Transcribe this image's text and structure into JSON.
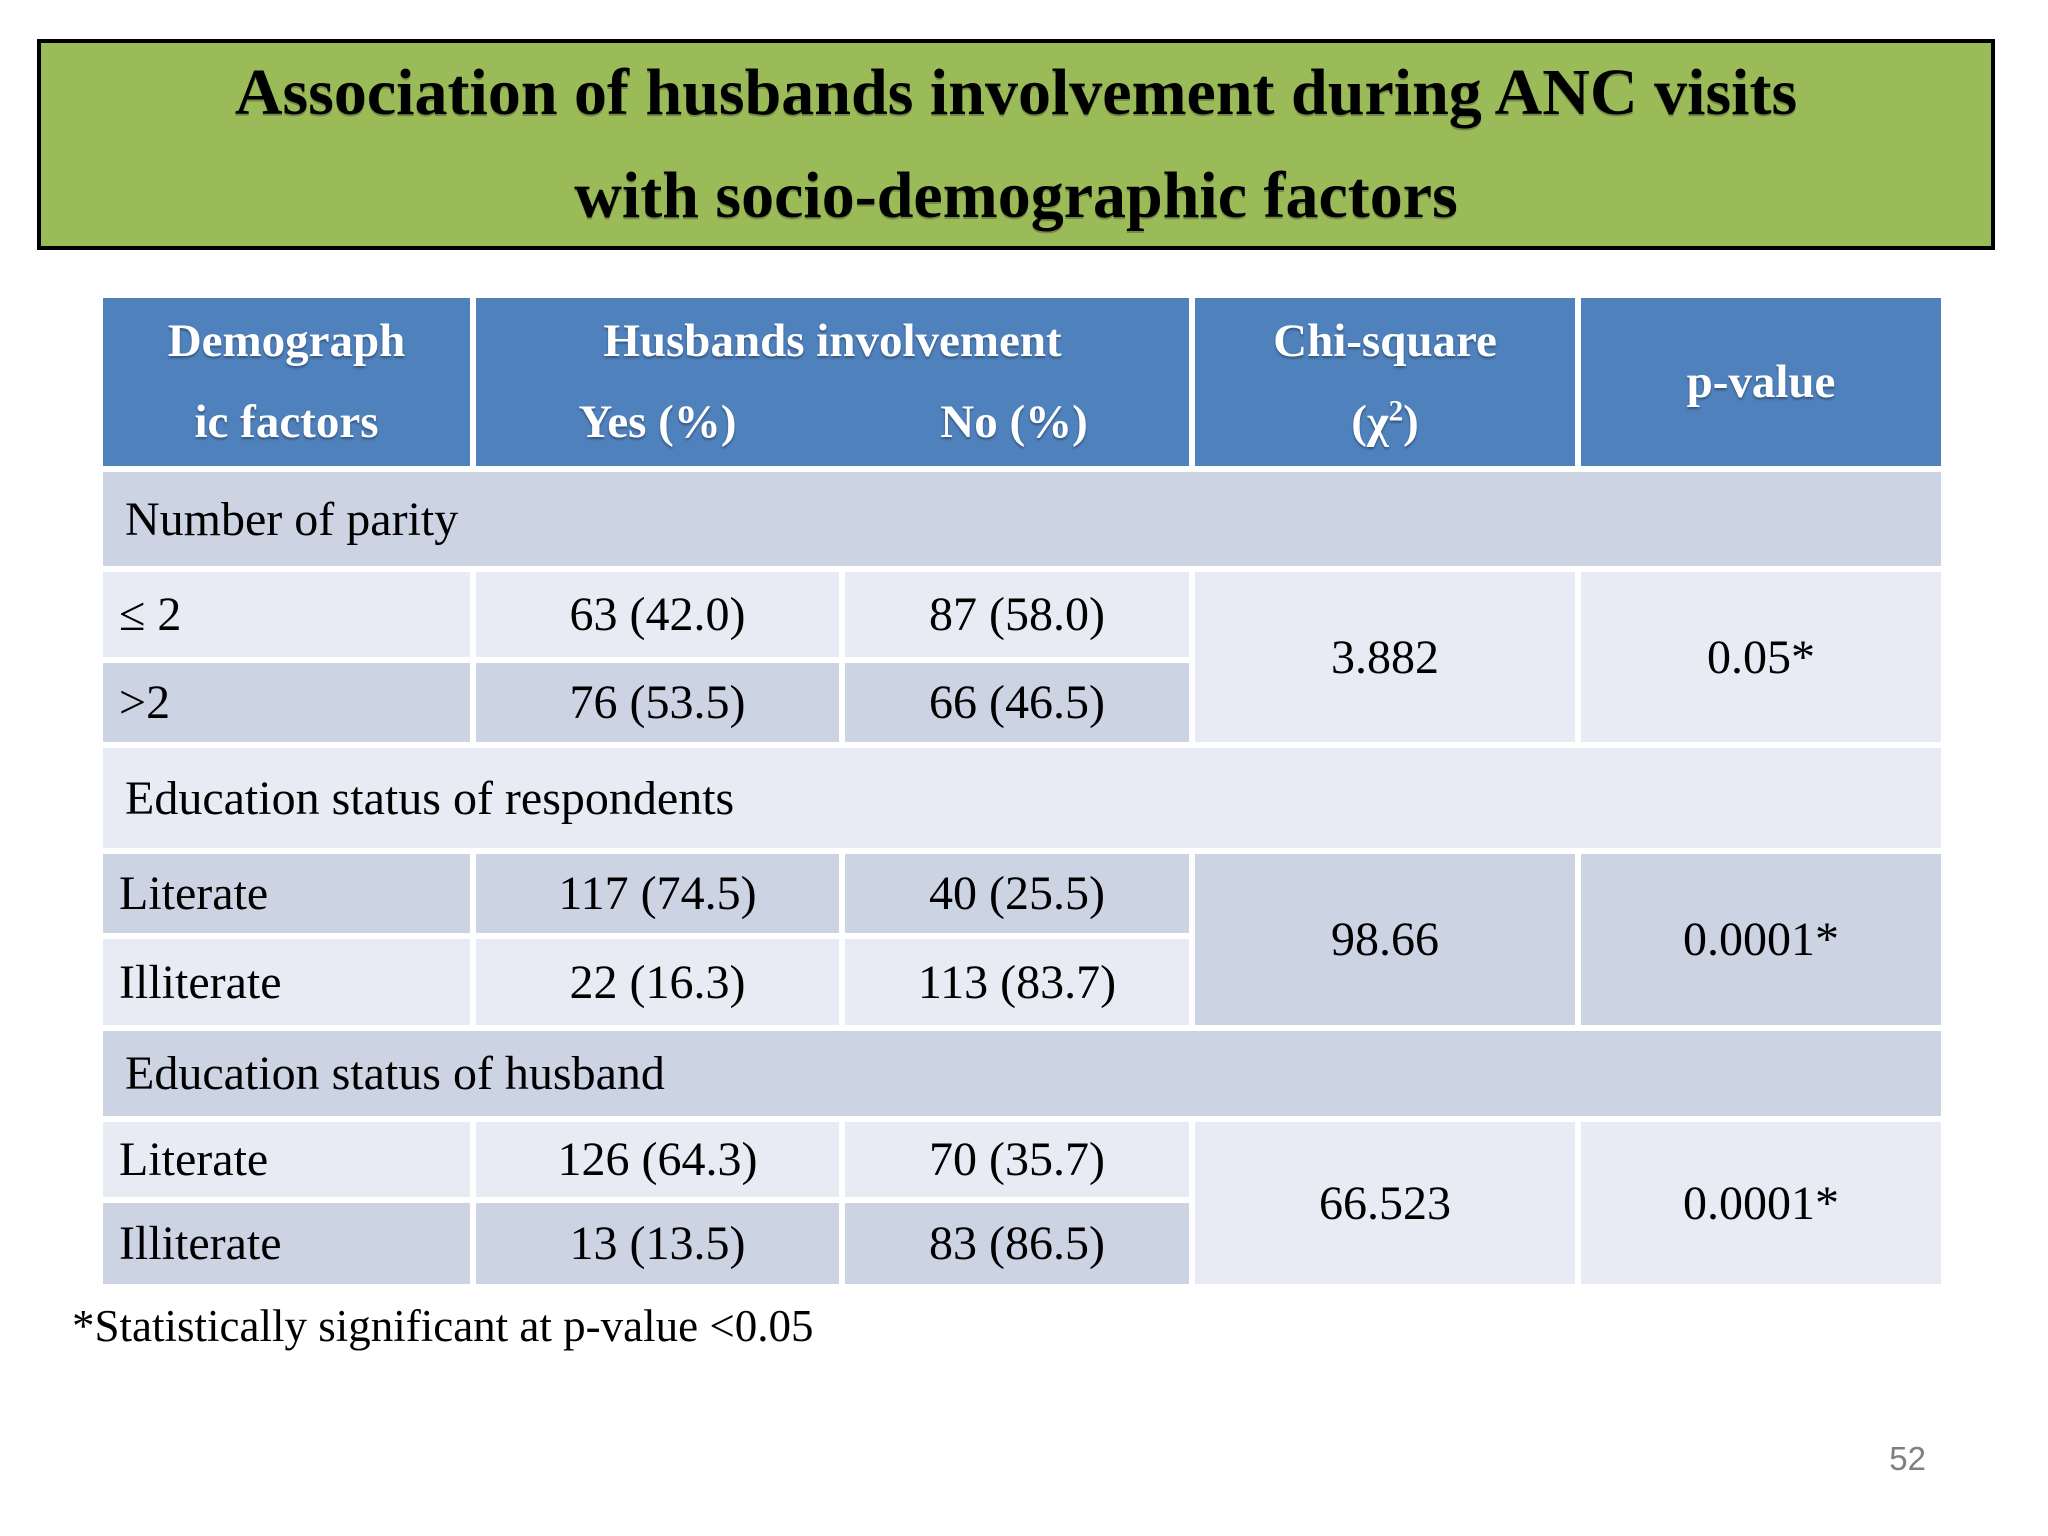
{
  "title": {
    "lines": [
      "Association of husbands involvement during ANC visits",
      "with socio-demographic factors"
    ]
  },
  "table": {
    "header": {
      "col1_lines": [
        "Demograph",
        "ic factors"
      ],
      "involvement": "Husbands involvement",
      "yes": "Yes (%)",
      "no": "No (%)",
      "chi_line1": "Chi-square",
      "chi_pre": "(χ",
      "chi_sup": "2",
      "chi_post": ")",
      "p": "p-value"
    },
    "sections": [
      {
        "label": "Number of parity",
        "rows": [
          {
            "factor": "≤ 2",
            "yes": "63 (42.0)",
            "no": "87 (58.0)"
          },
          {
            "factor": ">2",
            "yes": "76 (53.5)",
            "no": "66 (46.5)"
          }
        ],
        "chi_square": "3.882",
        "p_value": "0.05*"
      },
      {
        "label": "Education status of respondents",
        "rows": [
          {
            "factor": "Literate",
            "yes": "117 (74.5)",
            "no": "40 (25.5)"
          },
          {
            "factor": "Illiterate",
            "yes": "22 (16.3)",
            "no": "113 (83.7)"
          }
        ],
        "chi_square": "98.66",
        "p_value": "0.0001*"
      },
      {
        "label": "Education status of husband",
        "rows": [
          {
            "factor": "Literate",
            "yes": "126 (64.3)",
            "no": "70 (35.7)"
          },
          {
            "factor": "Illiterate",
            "yes": "13 (13.5)",
            "no": "83 (86.5)"
          }
        ],
        "chi_square": "66.523",
        "p_value": "0.0001*"
      }
    ]
  },
  "footnote": "*Statistically significant at p-value <0.05",
  "page_number": "52",
  "colors": {
    "title_green": "#9BBB59",
    "header_blue": "#4F81BD",
    "band_light": "#E9EBF4",
    "band_dark": "#CCD4E4",
    "page_gray": "#7f7f7f"
  }
}
